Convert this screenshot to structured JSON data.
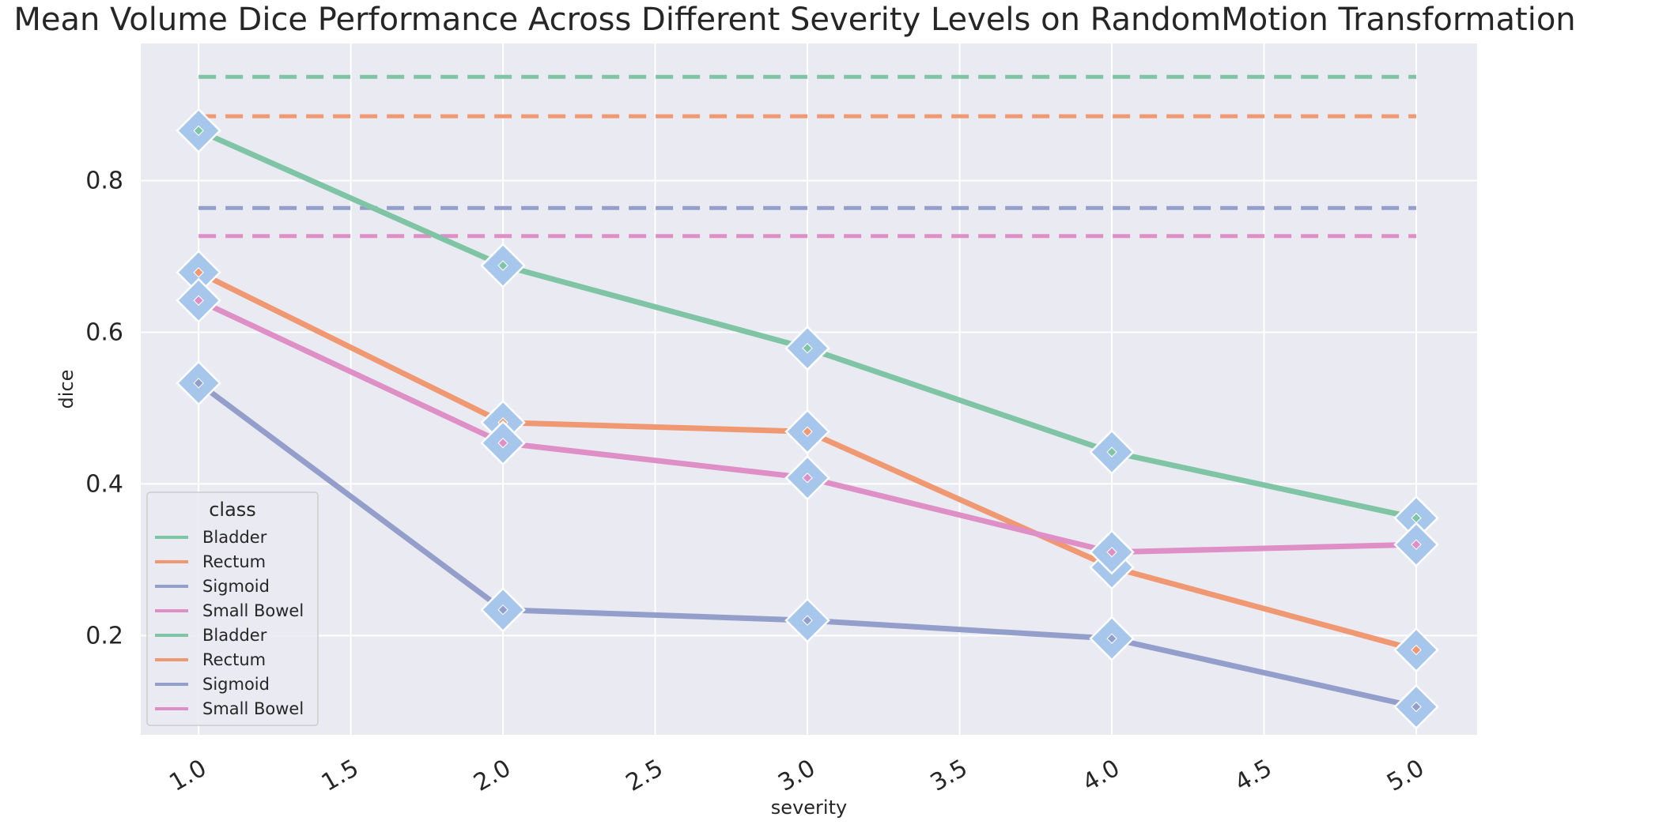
{
  "chart_data": {
    "type": "line",
    "title": "Mean Volume Dice Performance Across Different Severity Levels on RandomMotion Transformation",
    "xlabel": "severity",
    "ylabel": "dice",
    "x": [
      1.0,
      2.0,
      3.0,
      4.0,
      5.0
    ],
    "xticks": [
      "1.0",
      "1.5",
      "2.0",
      "2.5",
      "3.0",
      "3.5",
      "4.0",
      "4.5",
      "5.0"
    ],
    "yticks": [
      "0.2",
      "0.4",
      "0.6",
      "0.8"
    ],
    "xlim": [
      0.81,
      5.2
    ],
    "ylim": [
      0.069,
      0.981
    ],
    "grid": true,
    "legend": {
      "title": "class",
      "placement": "lower-left",
      "entries": [
        "Bladder",
        "Rectum",
        "Sigmoid",
        "Small Bowel",
        "Bladder",
        "Rectum",
        "Sigmoid",
        "Small Bowel"
      ]
    },
    "series": [
      {
        "name": "Bladder",
        "style": "solid",
        "color": "#7fc5a5",
        "values": [
          0.866,
          0.688,
          0.579,
          0.442,
          0.355
        ]
      },
      {
        "name": "Rectum",
        "style": "solid",
        "color": "#ef9871",
        "values": [
          0.679,
          0.481,
          0.469,
          0.29,
          0.181
        ]
      },
      {
        "name": "Sigmoid",
        "style": "solid",
        "color": "#939fca",
        "values": [
          0.533,
          0.234,
          0.22,
          0.196,
          0.106
        ]
      },
      {
        "name": "Small Bowel",
        "style": "solid",
        "color": "#de8fc6",
        "values": [
          0.642,
          0.454,
          0.408,
          0.31,
          0.32
        ]
      },
      {
        "name": "Bladder",
        "style": "dashed",
        "color": "#7fc5a5",
        "values": [
          0.937,
          0.937,
          0.937,
          0.937,
          0.937
        ]
      },
      {
        "name": "Rectum",
        "style": "dashed",
        "color": "#ef9871",
        "values": [
          0.885,
          0.885,
          0.885,
          0.885,
          0.885
        ]
      },
      {
        "name": "Sigmoid",
        "style": "dashed",
        "color": "#939fca",
        "values": [
          0.764,
          0.764,
          0.764,
          0.764,
          0.764
        ]
      },
      {
        "name": "Small Bowel",
        "style": "dashed",
        "color": "#de8fc6",
        "values": [
          0.727,
          0.727,
          0.727,
          0.727,
          0.727
        ]
      }
    ],
    "colors": {
      "plot_background": "#eaeaf2",
      "grid": "#ffffff",
      "marker": "#a6c6ec"
    }
  }
}
